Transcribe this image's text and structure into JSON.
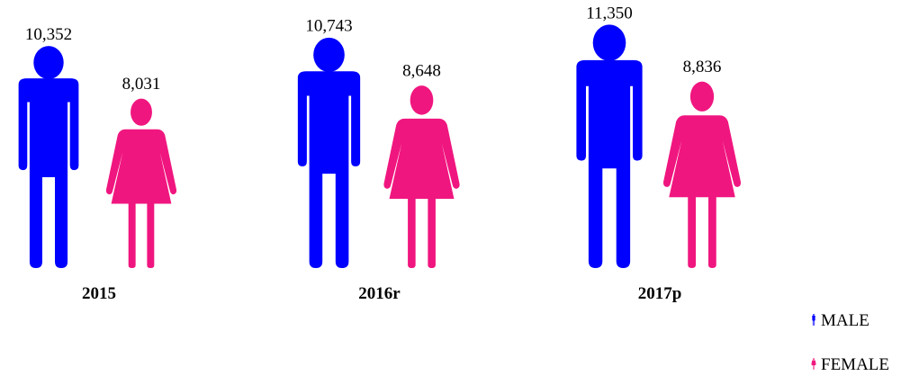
{
  "chart_data": {
    "type": "pictograph",
    "categories": [
      "2015",
      "2016r",
      "2017p"
    ],
    "series": [
      {
        "name": "MALE",
        "color": "#0000ff",
        "values": [
          10352,
          10743,
          11350
        ],
        "value_labels": [
          "10,352",
          "10,743",
          "11,350"
        ]
      },
      {
        "name": "FEMALE",
        "color": "#f0167f",
        "values": [
          8031,
          8648,
          8836
        ],
        "value_labels": [
          "8,031",
          "8,648",
          "8,836"
        ]
      }
    ],
    "legend": "bottom-right"
  }
}
